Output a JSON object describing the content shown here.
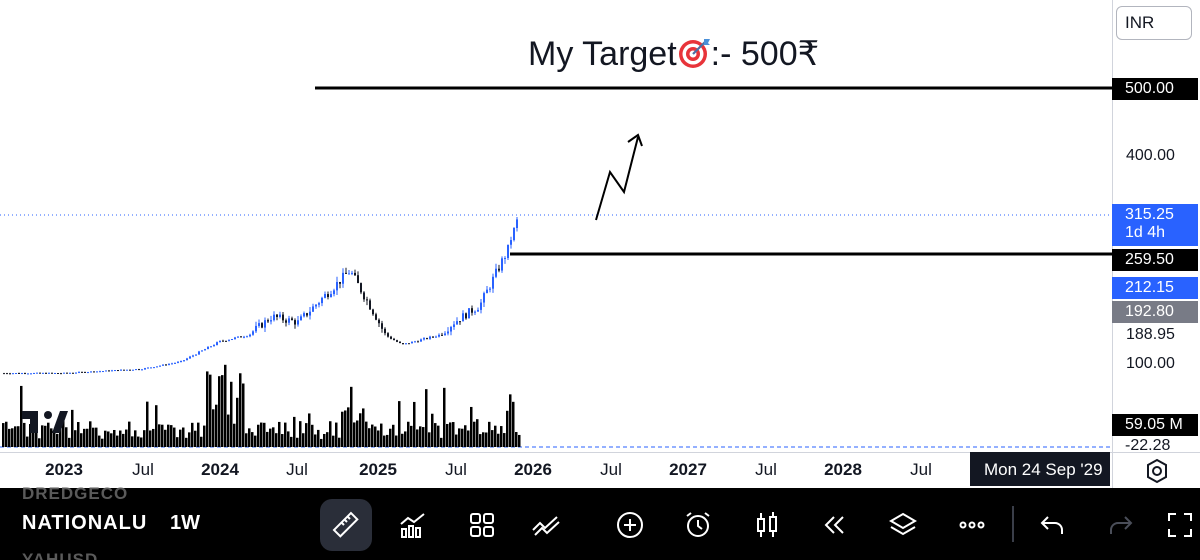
{
  "annotation": {
    "title_pre": "My Target",
    "title_post": ":- 500₹",
    "icon": "dart-target-icon"
  },
  "currency": "INR",
  "price_axis": {
    "ticks": [
      "400.00",
      "188.95",
      "100.00"
    ],
    "badges": {
      "target": {
        "text": "500.00",
        "bg": "#000000",
        "fg": "#ffffff"
      },
      "last": {
        "line1": "315.25",
        "line2": "1d 4h",
        "bg": "#2962ff",
        "fg": "#ffffff"
      },
      "support": {
        "text": "259.50",
        "bg": "#000000",
        "fg": "#ffffff"
      },
      "blue": {
        "text": "212.15",
        "bg": "#2962ff",
        "fg": "#ffffff"
      },
      "grey": {
        "text": "192.80",
        "bg": "#787b86",
        "fg": "#ffffff"
      },
      "volume": {
        "text": "59.05 M",
        "bg": "#000000",
        "fg": "#ffffff"
      },
      "negative": {
        "text": "-22.28"
      }
    }
  },
  "time_axis": {
    "labels": [
      {
        "text": "2023",
        "year": true
      },
      {
        "text": "Jul",
        "year": false
      },
      {
        "text": "2024",
        "year": true
      },
      {
        "text": "Jul",
        "year": false
      },
      {
        "text": "2025",
        "year": true
      },
      {
        "text": "Jul",
        "year": false
      },
      {
        "text": "2026",
        "year": true
      },
      {
        "text": "Jul",
        "year": false
      },
      {
        "text": "2027",
        "year": true
      },
      {
        "text": "Jul",
        "year": false
      },
      {
        "text": "2028",
        "year": true
      },
      {
        "text": "Jul",
        "year": false
      }
    ],
    "crosshair_date": "Mon 24 Sep '29"
  },
  "toolbar": {
    "ghost_top": "DREDGECO",
    "symbol": "NATIONALU",
    "ghost_bottom": "YAHUSD",
    "interval": "1W",
    "tools": [
      "ruler-icon",
      "indicators-icon",
      "grid-icon",
      "drawing-icon",
      "add-icon",
      "alarm-icon",
      "candles-icon",
      "replay-icon",
      "layers-icon",
      "more-icon",
      "undo-icon",
      "redo-icon",
      "fullscreen-icon"
    ]
  },
  "chart_data": {
    "type": "candlestick",
    "symbol": "NATIONALU",
    "interval": "1W",
    "currency": "INR",
    "title": "My Target :- 500₹",
    "x_axis_labels": [
      "2023",
      "Jul",
      "2024",
      "Jul",
      "2025",
      "Jul",
      "2026",
      "Jul",
      "2027",
      "Jul",
      "2028",
      "Jul"
    ],
    "y_axis_ticks": [
      500.0,
      400.0,
      315.25,
      259.5,
      188.95,
      100.0
    ],
    "horizontal_lines": [
      {
        "price": 500.0
      },
      {
        "price": 259.5
      }
    ],
    "last_price": 315.25,
    "countdown": "1d 4h",
    "price_series": [
      {
        "date": "2023-01",
        "close": 75
      },
      {
        "date": "2023-07",
        "close": 88
      },
      {
        "date": "2023-10",
        "close": 110
      },
      {
        "date": "2024-01",
        "close": 170
      },
      {
        "date": "2024-05",
        "close": 205
      },
      {
        "date": "2024-07",
        "close": 200
      },
      {
        "date": "2024-11",
        "close": 245
      },
      {
        "date": "2025-01",
        "close": 205
      },
      {
        "date": "2025-03",
        "close": 160
      },
      {
        "date": "2025-07",
        "close": 200
      },
      {
        "date": "2025-09",
        "close": 215
      },
      {
        "date": "2025-11",
        "close": 260
      },
      {
        "date": "2025-12",
        "close": 315.25
      }
    ],
    "volume_last": "59.05 M"
  }
}
